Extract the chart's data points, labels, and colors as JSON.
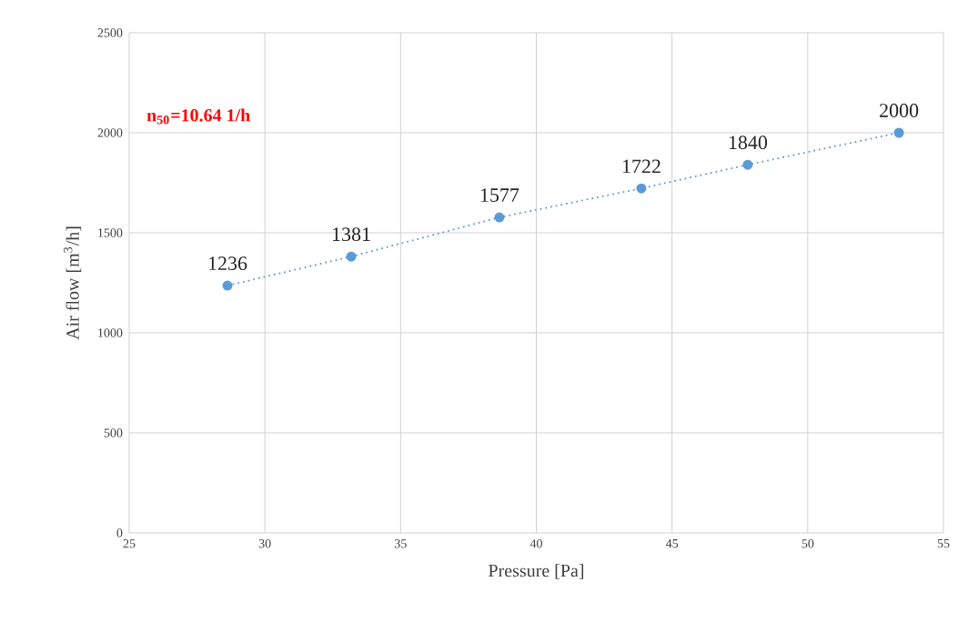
{
  "chart_data": {
    "type": "line",
    "xlabel": "Pressure [Pa]",
    "ylabel": "Air flow  [m$^{3}$/h]",
    "annotations": [
      "n$_{50}$=10.64 1/h"
    ],
    "x": [
      28.62,
      33.18,
      38.64,
      43.87,
      47.79,
      53.36
    ],
    "series": [
      {
        "color": "#5b9bd5",
        "values": [
          1236,
          1381,
          1577,
          1722,
          1840,
          2000
        ]
      }
    ],
    "xlim": [
      25,
      55
    ],
    "xticks": [
      25,
      30,
      35,
      40,
      45,
      50,
      55
    ],
    "ylim": [
      0,
      2500
    ],
    "yticks": [
      0,
      500,
      1000,
      1500,
      2000,
      2500
    ],
    "grid": true,
    "marker": "circle",
    "line_style": "dotted",
    "data_labels": true
  }
}
